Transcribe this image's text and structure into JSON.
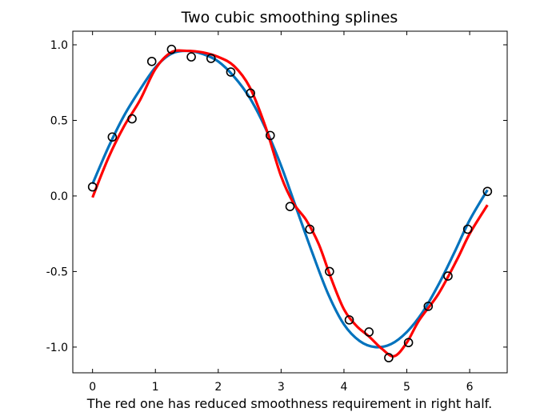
{
  "chart_data": {
    "type": "line",
    "title": "Two cubic smoothing splines",
    "xlabel": "The red one has reduced smoothness requirement in right half.",
    "ylabel": "",
    "xlim": [
      -0.314,
      6.597
    ],
    "ylim": [
      -1.17,
      1.09
    ],
    "xticks": [
      0,
      1,
      2,
      3,
      4,
      5,
      6
    ],
    "xtick_labels": [
      "0",
      "1",
      "2",
      "3",
      "4",
      "5",
      "6"
    ],
    "yticks": [
      1.0,
      0.5,
      0.0,
      -0.5,
      -1.0
    ],
    "ytick_labels": [
      "1.0",
      "0.5",
      "0.0",
      "-0.5",
      "-1.0"
    ],
    "grid": false,
    "points": {
      "name": "data",
      "x": [
        0.0,
        0.3142,
        0.6283,
        0.9425,
        1.2566,
        1.5708,
        1.885,
        2.1991,
        2.5133,
        2.8274,
        3.1416,
        3.4558,
        3.7699,
        4.0841,
        4.3982,
        4.7124,
        5.0265,
        5.3407,
        5.6549,
        5.969,
        6.2832
      ],
      "y": [
        0.06,
        0.39,
        0.51,
        0.89,
        0.97,
        0.92,
        0.91,
        0.82,
        0.68,
        0.4,
        -0.07,
        -0.22,
        -0.5,
        -0.82,
        -0.9,
        -1.07,
        -0.97,
        -0.73,
        -0.53,
        -0.22,
        0.03
      ],
      "marker": "open-circle",
      "color": "#000000"
    },
    "series": [
      {
        "name": "blue spline",
        "color": "#0072bd",
        "x": [
          0.0,
          0.25,
          0.5,
          0.75,
          1.0,
          1.25,
          1.5,
          1.75,
          2.0,
          2.25,
          2.5,
          2.75,
          3.0,
          3.25,
          3.5,
          3.75,
          4.0,
          4.25,
          4.5,
          4.75,
          5.0,
          5.25,
          5.5,
          5.75,
          6.0,
          6.283
        ],
        "y": [
          0.08,
          0.32,
          0.53,
          0.7,
          0.85,
          0.94,
          0.96,
          0.94,
          0.89,
          0.79,
          0.65,
          0.45,
          0.2,
          -0.09,
          -0.38,
          -0.65,
          -0.85,
          -0.96,
          -1.0,
          -0.98,
          -0.9,
          -0.77,
          -0.59,
          -0.38,
          -0.16,
          0.04
        ]
      },
      {
        "name": "red spline",
        "color": "#ff0000",
        "x": [
          0.0,
          0.25,
          0.5,
          0.75,
          1.0,
          1.25,
          1.5,
          1.75,
          2.0,
          2.25,
          2.5,
          2.75,
          3.0,
          3.2,
          3.4,
          3.6,
          3.8,
          4.0,
          4.2,
          4.4,
          4.6,
          4.8,
          5.0,
          5.2,
          5.5,
          5.8,
          6.0,
          6.283
        ],
        "y": [
          -0.01,
          0.25,
          0.46,
          0.63,
          0.84,
          0.95,
          0.96,
          0.95,
          0.92,
          0.86,
          0.72,
          0.46,
          0.13,
          -0.05,
          -0.16,
          -0.32,
          -0.55,
          -0.75,
          -0.86,
          -0.93,
          -1.01,
          -1.06,
          -0.97,
          -0.82,
          -0.65,
          -0.42,
          -0.25,
          -0.06
        ]
      }
    ]
  }
}
